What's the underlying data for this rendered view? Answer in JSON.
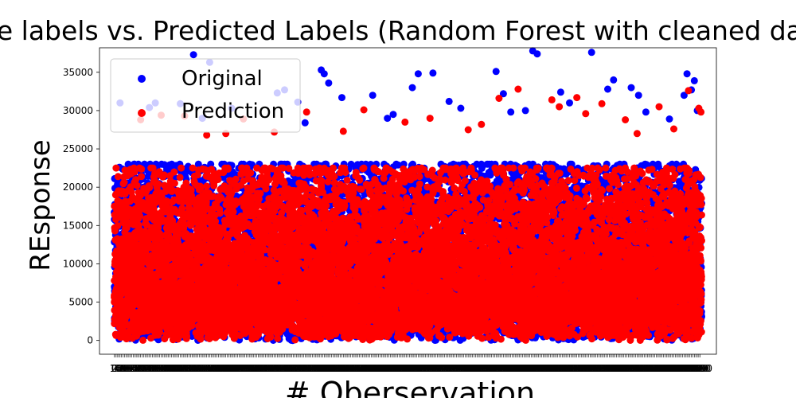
{
  "chart_data": {
    "type": "scatter",
    "title": "True labels vs. Predicted Labels (Random Forest with cleaned data)",
    "xlabel": "# Oberservation",
    "ylabel": "REsponse",
    "xlim": [
      -100,
      4100
    ],
    "ylim": [
      -1800,
      38200
    ],
    "yticks": [
      0,
      5000,
      10000,
      15000,
      20000,
      25000,
      30000,
      35000
    ],
    "ytick_labels": [
      "0",
      "5000",
      "10000",
      "15000",
      "20000",
      "25000",
      "30000",
      "35000"
    ],
    "grid": false,
    "legend_placement": "top-left",
    "n_observations": 4000,
    "series": [
      {
        "name": "Original",
        "color": "#0000ff",
        "dense_band": [
          0,
          23000
        ],
        "outliers": [
          [
            540,
            37300
          ],
          [
            2850,
            37800
          ],
          [
            2880,
            37400
          ],
          [
            3250,
            37600
          ],
          [
            40,
            31000
          ],
          [
            650,
            36300
          ],
          [
            1410,
            35300
          ],
          [
            1430,
            34800
          ],
          [
            1460,
            33600
          ],
          [
            2070,
            34800
          ],
          [
            2170,
            34900
          ],
          [
            2600,
            35100
          ],
          [
            3400,
            34000
          ],
          [
            3900,
            34800
          ],
          [
            3950,
            33900
          ],
          [
            240,
            30400
          ],
          [
            280,
            31000
          ],
          [
            450,
            30900
          ],
          [
            800,
            30300
          ],
          [
            1110,
            32300
          ],
          [
            1160,
            32700
          ],
          [
            1250,
            31100
          ],
          [
            1550,
            31700
          ],
          [
            1760,
            32000
          ],
          [
            1860,
            29000
          ],
          [
            2030,
            33000
          ],
          [
            2280,
            31200
          ],
          [
            2360,
            30300
          ],
          [
            2650,
            32200
          ],
          [
            2700,
            29800
          ],
          [
            3040,
            32400
          ],
          [
            3360,
            32800
          ],
          [
            3520,
            33000
          ],
          [
            3570,
            32000
          ],
          [
            3620,
            29800
          ],
          [
            3780,
            28900
          ],
          [
            3880,
            32000
          ],
          [
            3930,
            32700
          ],
          [
            3970,
            30000
          ],
          [
            1900,
            29500
          ],
          [
            2800,
            30000
          ],
          [
            3100,
            31000
          ],
          [
            600,
            29000
          ],
          [
            1300,
            28400
          ]
        ]
      },
      {
        "name": "Prediction",
        "color": "#ff0000",
        "dense_band": [
          0,
          22500
        ],
        "outliers": [
          [
            180,
            28800
          ],
          [
            320,
            29400
          ],
          [
            480,
            29300
          ],
          [
            760,
            27000
          ],
          [
            880,
            28900
          ],
          [
            1310,
            29800
          ],
          [
            1560,
            27300
          ],
          [
            1700,
            30100
          ],
          [
            2150,
            29000
          ],
          [
            2500,
            28200
          ],
          [
            2620,
            31600
          ],
          [
            2750,
            32800
          ],
          [
            2980,
            31400
          ],
          [
            3030,
            30500
          ],
          [
            3150,
            31700
          ],
          [
            3210,
            29600
          ],
          [
            3320,
            30900
          ],
          [
            3480,
            28800
          ],
          [
            3710,
            30500
          ],
          [
            3810,
            27600
          ],
          [
            3910,
            32600
          ],
          [
            3980,
            30300
          ],
          [
            3995,
            29800
          ],
          [
            1980,
            28500
          ],
          [
            2410,
            27500
          ],
          [
            3560,
            27000
          ],
          [
            1090,
            27200
          ],
          [
            630,
            26800
          ]
        ]
      }
    ]
  }
}
